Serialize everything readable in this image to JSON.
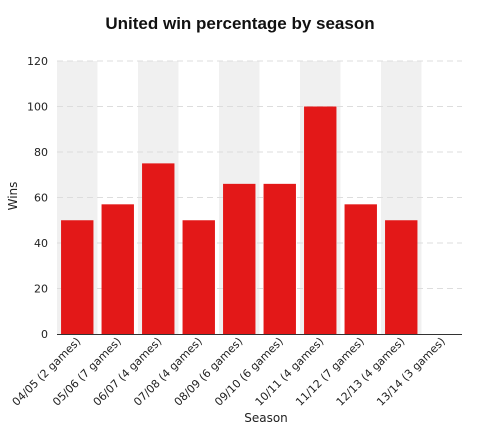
{
  "chart_data": {
    "type": "bar",
    "title": "United win percentage by season",
    "xlabel": "Season",
    "ylabel": "Wins",
    "categories": [
      "04/05 (2 games)",
      "05/06 (7 games)",
      "06/07 (4 games)",
      "07/08 (4 games)",
      "08/09 (6 games)",
      "09/10 (6 games)",
      "10/11 (4 games)",
      "11/12 (7 games)",
      "12/13 (4 games)",
      "13/14 (3 games)"
    ],
    "values": [
      50,
      57,
      75,
      50,
      66,
      66,
      100,
      57,
      50,
      0
    ],
    "ylim": [
      0,
      120
    ],
    "yticks": [
      0,
      20,
      40,
      60,
      80,
      100,
      120
    ],
    "grid": true,
    "bar_color": "#e31818",
    "band_color": "#f0f0f0",
    "grid_color": "#dddddd"
  }
}
